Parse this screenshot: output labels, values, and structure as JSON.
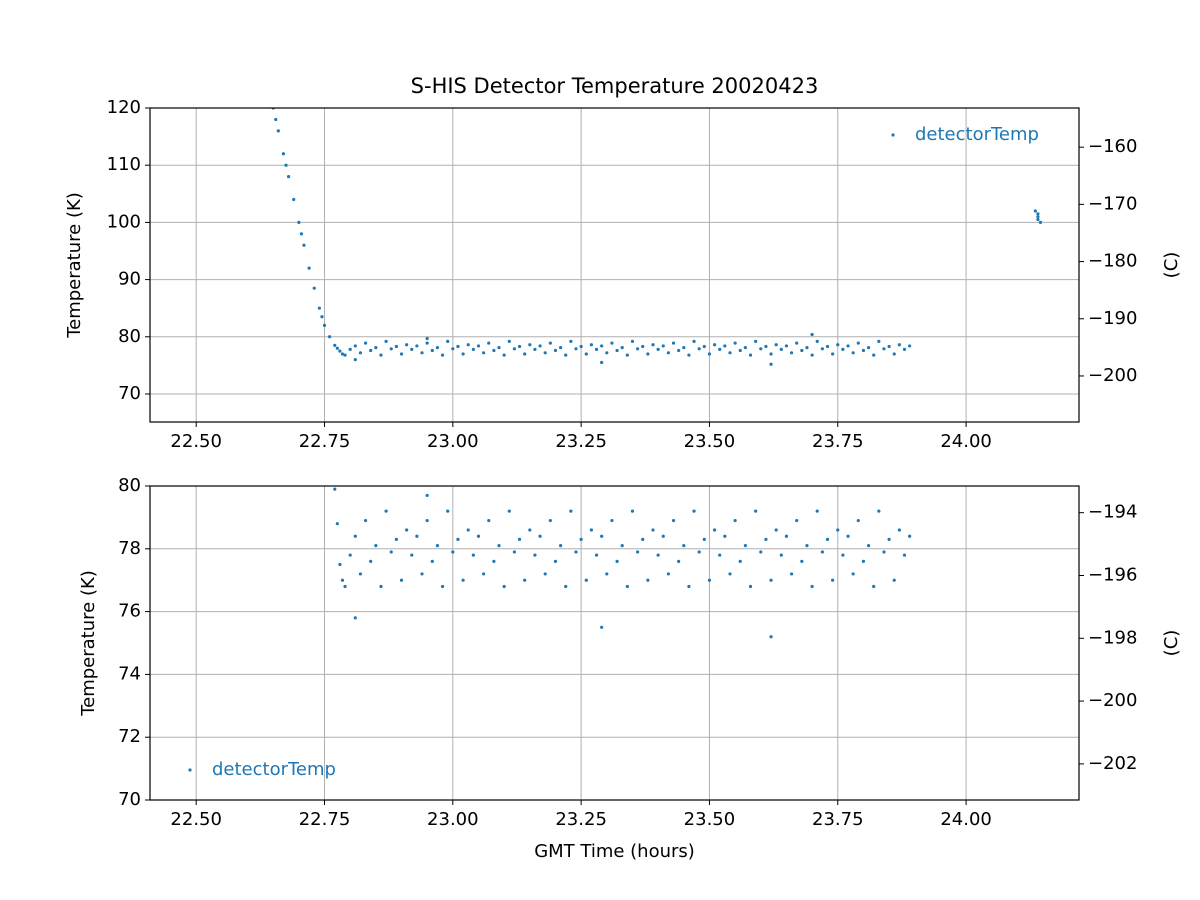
{
  "chart_data": [
    {
      "type": "scatter",
      "title": "S-HIS Detector Temperature 20020423",
      "y_label": "Temperature (K)",
      "y2_label": "(C)",
      "legend_loc": "upper right",
      "grid": true,
      "xlim": [
        22.41,
        24.22
      ],
      "ylim": [
        65.1,
        120
      ],
      "y2lim": [
        -208.05,
        -153.15
      ],
      "xticks": [
        {
          "value": 22.5,
          "label": "22.50"
        },
        {
          "value": 22.75,
          "label": "22.75"
        },
        {
          "value": 23,
          "label": "23.00"
        },
        {
          "value": 23.25,
          "label": "23.25"
        },
        {
          "value": 23.5,
          "label": "23.50"
        },
        {
          "value": 23.75,
          "label": "23.75"
        },
        {
          "value": 24,
          "label": "24.00"
        }
      ],
      "yticks": [
        70,
        80,
        90,
        100,
        110,
        120
      ],
      "y2ticks": [
        {
          "value": -200,
          "label": "−200"
        },
        {
          "value": -190,
          "label": "−190"
        },
        {
          "value": -180,
          "label": "−180"
        },
        {
          "value": -170,
          "label": "−170"
        },
        {
          "value": -160,
          "label": "−160"
        }
      ],
      "series": [
        {
          "name": "detectorTemp",
          "color": "#1f77b4",
          "x": [
            22.65,
            22.655,
            22.66,
            22.67,
            22.675,
            22.68,
            22.69,
            22.7,
            22.705,
            22.71,
            22.72,
            22.73,
            22.74,
            22.745,
            22.75,
            22.76,
            22.77,
            22.775,
            22.78,
            22.785,
            22.79,
            22.8,
            22.81,
            22.82,
            22.83,
            22.84,
            22.85,
            22.86,
            22.87,
            22.88,
            22.89,
            22.9,
            22.91,
            22.92,
            22.93,
            22.94,
            22.95,
            22.96,
            22.97,
            22.98,
            22.99,
            23.0,
            23.01,
            23.02,
            23.03,
            23.04,
            23.05,
            23.06,
            23.07,
            23.08,
            23.09,
            23.1,
            23.11,
            23.12,
            23.13,
            23.14,
            23.15,
            23.16,
            23.17,
            23.18,
            23.19,
            23.2,
            23.21,
            23.22,
            23.23,
            23.24,
            23.25,
            23.26,
            23.27,
            23.28,
            23.29,
            23.3,
            23.31,
            23.32,
            23.33,
            23.34,
            23.35,
            23.36,
            23.37,
            23.38,
            23.39,
            23.4,
            23.41,
            23.42,
            23.43,
            23.44,
            23.45,
            23.46,
            23.47,
            23.48,
            23.49,
            23.5,
            23.51,
            23.52,
            23.53,
            23.54,
            23.55,
            23.56,
            23.57,
            23.58,
            23.59,
            23.6,
            23.61,
            23.62,
            23.63,
            23.64,
            23.65,
            23.66,
            23.67,
            23.68,
            23.69,
            23.7,
            23.71,
            23.72,
            23.73,
            23.74,
            23.75,
            23.76,
            23.77,
            23.78,
            23.79,
            23.8,
            23.81,
            23.82,
            23.83,
            23.84,
            23.85,
            23.86,
            23.87,
            23.88,
            23.89,
            22.81,
            22.95,
            23.29,
            23.62,
            23.7,
            24.135,
            24.14,
            24.14,
            24.14,
            24.145
          ],
          "values": [
            120,
            118,
            116,
            112,
            110,
            108,
            104,
            100,
            98,
            96,
            92,
            88.5,
            85,
            83.5,
            82,
            80,
            78.5,
            78,
            77.5,
            77,
            76.8,
            77.8,
            78.4,
            77.2,
            78.9,
            77.6,
            78.1,
            76.8,
            79.2,
            77.9,
            78.3,
            77.0,
            78.6,
            77.8,
            78.4,
            77.2,
            78.9,
            77.6,
            78.1,
            76.8,
            79.2,
            77.9,
            78.3,
            77.0,
            78.6,
            77.8,
            78.4,
            77.2,
            78.9,
            77.6,
            78.1,
            76.8,
            79.2,
            77.9,
            78.3,
            77.0,
            78.6,
            77.8,
            78.4,
            77.2,
            78.9,
            77.6,
            78.1,
            76.8,
            79.2,
            77.9,
            78.3,
            77.0,
            78.6,
            77.8,
            78.4,
            77.2,
            78.9,
            77.6,
            78.1,
            76.8,
            79.2,
            77.9,
            78.3,
            77.0,
            78.6,
            77.8,
            78.4,
            77.2,
            78.9,
            77.6,
            78.1,
            76.8,
            79.2,
            77.9,
            78.3,
            77.0,
            78.6,
            77.8,
            78.4,
            77.2,
            78.9,
            77.6,
            78.1,
            76.8,
            79.2,
            77.9,
            78.3,
            77.0,
            78.6,
            77.8,
            78.4,
            77.2,
            78.9,
            77.6,
            78.1,
            76.8,
            79.2,
            77.9,
            78.3,
            77.0,
            78.6,
            77.8,
            78.4,
            77.2,
            78.9,
            77.6,
            78.1,
            76.8,
            79.2,
            77.9,
            78.3,
            77.0,
            78.6,
            77.8,
            78.4,
            76.0,
            79.7,
            75.5,
            75.2,
            80.4,
            102,
            101.5,
            101,
            100.5,
            100
          ]
        }
      ]
    },
    {
      "type": "scatter",
      "x_label": "GMT Time (hours)",
      "y_label": "Temperature (K)",
      "y2_label": "(C)",
      "legend_loc": "lower left",
      "grid": true,
      "xlim": [
        22.41,
        24.22
      ],
      "ylim": [
        70,
        80
      ],
      "y2lim": [
        -203.15,
        -193.15
      ],
      "xticks": [
        {
          "value": 22.5,
          "label": "22.50"
        },
        {
          "value": 22.75,
          "label": "22.75"
        },
        {
          "value": 23,
          "label": "23.00"
        },
        {
          "value": 23.25,
          "label": "23.25"
        },
        {
          "value": 23.5,
          "label": "23.50"
        },
        {
          "value": 23.75,
          "label": "23.75"
        },
        {
          "value": 24,
          "label": "24.00"
        }
      ],
      "yticks": [
        70,
        72,
        74,
        76,
        78,
        80
      ],
      "y2ticks": [
        {
          "value": -202,
          "label": "−202"
        },
        {
          "value": -200,
          "label": "−200"
        },
        {
          "value": -198,
          "label": "−198"
        },
        {
          "value": -196,
          "label": "−196"
        },
        {
          "value": -194,
          "label": "−194"
        }
      ],
      "series": [
        {
          "name": "detectorTemp",
          "color": "#1f77b4",
          "x": [
            22.77,
            22.775,
            22.78,
            22.785,
            22.79,
            22.8,
            22.81,
            22.82,
            22.83,
            22.84,
            22.85,
            22.86,
            22.87,
            22.88,
            22.89,
            22.9,
            22.91,
            22.92,
            22.93,
            22.94,
            22.95,
            22.96,
            22.97,
            22.98,
            22.99,
            23.0,
            23.01,
            23.02,
            23.03,
            23.04,
            23.05,
            23.06,
            23.07,
            23.08,
            23.09,
            23.1,
            23.11,
            23.12,
            23.13,
            23.14,
            23.15,
            23.16,
            23.17,
            23.18,
            23.19,
            23.2,
            23.21,
            23.22,
            23.23,
            23.24,
            23.25,
            23.26,
            23.27,
            23.28,
            23.29,
            23.3,
            23.31,
            23.32,
            23.33,
            23.34,
            23.35,
            23.36,
            23.37,
            23.38,
            23.39,
            23.4,
            23.41,
            23.42,
            23.43,
            23.44,
            23.45,
            23.46,
            23.47,
            23.48,
            23.49,
            23.5,
            23.51,
            23.52,
            23.53,
            23.54,
            23.55,
            23.56,
            23.57,
            23.58,
            23.59,
            23.6,
            23.61,
            23.62,
            23.63,
            23.64,
            23.65,
            23.66,
            23.67,
            23.68,
            23.69,
            23.7,
            23.71,
            23.72,
            23.73,
            23.74,
            23.75,
            23.76,
            23.77,
            23.78,
            23.79,
            23.8,
            23.81,
            23.82,
            23.83,
            23.84,
            23.85,
            23.86,
            23.87,
            23.88,
            23.89,
            22.81,
            22.95,
            23.29,
            23.62
          ],
          "values": [
            79.9,
            78.8,
            77.5,
            77,
            76.8,
            77.8,
            78.4,
            77.2,
            78.9,
            77.6,
            78.1,
            76.8,
            79.2,
            77.9,
            78.3,
            77.0,
            78.6,
            77.8,
            78.4,
            77.2,
            78.9,
            77.6,
            78.1,
            76.8,
            79.2,
            77.9,
            78.3,
            77.0,
            78.6,
            77.8,
            78.4,
            77.2,
            78.9,
            77.6,
            78.1,
            76.8,
            79.2,
            77.9,
            78.3,
            77.0,
            78.6,
            77.8,
            78.4,
            77.2,
            78.9,
            77.6,
            78.1,
            76.8,
            79.2,
            77.9,
            78.3,
            77.0,
            78.6,
            77.8,
            78.4,
            77.2,
            78.9,
            77.6,
            78.1,
            76.8,
            79.2,
            77.9,
            78.3,
            77.0,
            78.6,
            77.8,
            78.4,
            77.2,
            78.9,
            77.6,
            78.1,
            76.8,
            79.2,
            77.9,
            78.3,
            77.0,
            78.6,
            77.8,
            78.4,
            77.2,
            78.9,
            77.6,
            78.1,
            76.8,
            79.2,
            77.9,
            78.3,
            77.0,
            78.6,
            77.8,
            78.4,
            77.2,
            78.9,
            77.6,
            78.1,
            76.8,
            79.2,
            77.9,
            78.3,
            77.0,
            78.6,
            77.8,
            78.4,
            77.2,
            78.9,
            77.6,
            78.1,
            76.8,
            79.2,
            77.9,
            78.3,
            77.0,
            78.6,
            77.8,
            78.4,
            75.8,
            79.7,
            75.5,
            75.2
          ]
        }
      ]
    }
  ]
}
